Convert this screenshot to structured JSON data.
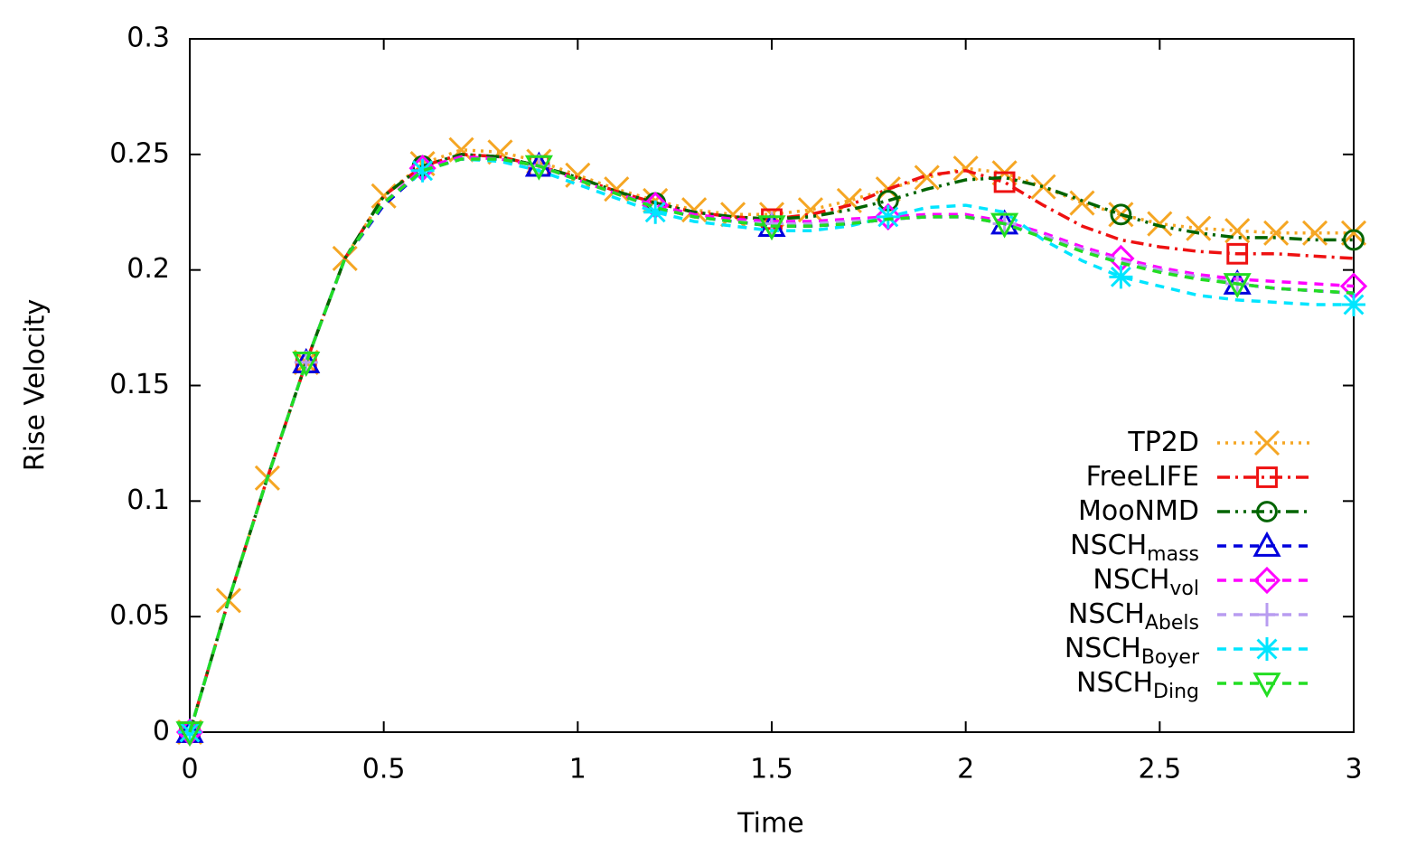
{
  "chart_data": {
    "type": "line",
    "xlabel": "Time",
    "ylabel": "Rise Velocity",
    "x": [
      0,
      0.1,
      0.2,
      0.3,
      0.4,
      0.5,
      0.6,
      0.7,
      0.8,
      0.9,
      1,
      1.1,
      1.2,
      1.3,
      1.4,
      1.5,
      1.6,
      1.7,
      1.8,
      1.9,
      2,
      2.1,
      2.2,
      2.3,
      2.4,
      2.5,
      2.6,
      2.7,
      2.8,
      2.9,
      3
    ],
    "xlim": [
      0,
      3
    ],
    "xticks": [
      0,
      0.5,
      1,
      1.5,
      2,
      2.5,
      3
    ],
    "ylim": [
      0,
      0.3
    ],
    "yticks": [
      0,
      0.05,
      0.1,
      0.15,
      0.2,
      0.25,
      0.3
    ],
    "legend": "right",
    "series": [
      {
        "name": "TP2D",
        "color": "#f5a623",
        "linestyle": "dotted",
        "marker": "x",
        "values": [
          0,
          0.057,
          0.11,
          0.16,
          0.205,
          0.232,
          0.246,
          0.252,
          0.251,
          0.247,
          0.241,
          0.235,
          0.23,
          0.226,
          0.224,
          0.224,
          0.226,
          0.23,
          0.235,
          0.24,
          0.244,
          0.242,
          0.236,
          0.229,
          0.224,
          0.22,
          0.218,
          0.217,
          0.216,
          0.216,
          0.216
        ]
      },
      {
        "name": "FreeLIFE",
        "color": "#ee1111",
        "linestyle": "dashdot",
        "marker": "square",
        "values": [
          0,
          0.057,
          0.11,
          0.16,
          0.205,
          0.232,
          0.245,
          0.25,
          0.249,
          0.245,
          0.24,
          0.234,
          0.229,
          0.225,
          0.223,
          0.222,
          0.224,
          0.228,
          0.235,
          0.241,
          0.243,
          0.238,
          0.228,
          0.219,
          0.213,
          0.21,
          0.208,
          0.207,
          0.207,
          0.206,
          0.205
        ]
      },
      {
        "name": "MooNMD",
        "color": "#006400",
        "linestyle": "dashdotdot",
        "marker": "circle",
        "values": [
          0,
          0.057,
          0.11,
          0.16,
          0.205,
          0.232,
          0.245,
          0.25,
          0.249,
          0.245,
          0.24,
          0.234,
          0.229,
          0.225,
          0.223,
          0.222,
          0.223,
          0.226,
          0.23,
          0.235,
          0.239,
          0.24,
          0.236,
          0.23,
          0.224,
          0.219,
          0.216,
          0.214,
          0.214,
          0.213,
          0.213
        ]
      },
      {
        "name": "NSCH",
        "name_sub": "mass",
        "color": "#0000dd",
        "linestyle": "dashed",
        "marker": "triangle",
        "values": [
          0,
          0.057,
          0.11,
          0.16,
          0.205,
          0.228,
          0.243,
          0.248,
          0.248,
          0.245,
          0.239,
          0.233,
          0.227,
          0.223,
          0.221,
          0.219,
          0.219,
          0.22,
          0.222,
          0.223,
          0.223,
          0.22,
          0.215,
          0.209,
          0.204,
          0.2,
          0.197,
          0.194,
          0.192,
          0.191,
          0.19
        ]
      },
      {
        "name": "NSCH",
        "name_sub": "vol",
        "color": "#ff00ff",
        "linestyle": "dashed",
        "marker": "diamond",
        "values": [
          0,
          0.057,
          0.11,
          0.16,
          0.205,
          0.229,
          0.244,
          0.249,
          0.248,
          0.245,
          0.239,
          0.233,
          0.228,
          0.224,
          0.222,
          0.221,
          0.221,
          0.222,
          0.223,
          0.224,
          0.224,
          0.221,
          0.216,
          0.21,
          0.205,
          0.201,
          0.198,
          0.196,
          0.195,
          0.194,
          0.193
        ]
      },
      {
        "name": "NSCH",
        "name_sub": "Abels",
        "color": "#b89cf0",
        "linestyle": "dashed",
        "marker": "plus",
        "values": [
          0,
          0.057,
          0.11,
          0.16,
          0.205,
          0.229,
          0.243,
          0.248,
          0.248,
          0.245,
          0.239,
          0.233,
          0.227,
          0.223,
          0.221,
          0.22,
          0.22,
          0.221,
          0.222,
          0.223,
          0.223,
          0.22,
          0.215,
          0.209,
          0.204,
          0.2,
          0.197,
          0.194,
          0.192,
          0.191,
          0.19
        ]
      },
      {
        "name": "NSCH",
        "name_sub": "Boyer",
        "color": "#00e5ff",
        "linestyle": "dashed",
        "marker": "asterisk",
        "values": [
          0,
          0.057,
          0.11,
          0.16,
          0.205,
          0.229,
          0.243,
          0.248,
          0.247,
          0.243,
          0.237,
          0.231,
          0.225,
          0.221,
          0.219,
          0.217,
          0.217,
          0.219,
          0.223,
          0.227,
          0.228,
          0.225,
          0.213,
          0.204,
          0.197,
          0.193,
          0.189,
          0.187,
          0.186,
          0.185,
          0.185
        ]
      },
      {
        "name": "NSCH",
        "name_sub": "Ding",
        "color": "#22dd22",
        "linestyle": "dashed",
        "marker": "tridown",
        "values": [
          0,
          0.057,
          0.11,
          0.16,
          0.205,
          0.229,
          0.243,
          0.248,
          0.248,
          0.245,
          0.239,
          0.233,
          0.227,
          0.223,
          0.221,
          0.219,
          0.219,
          0.22,
          0.222,
          0.223,
          0.223,
          0.22,
          0.214,
          0.208,
          0.203,
          0.199,
          0.196,
          0.194,
          0.192,
          0.191,
          0.19
        ]
      }
    ]
  }
}
